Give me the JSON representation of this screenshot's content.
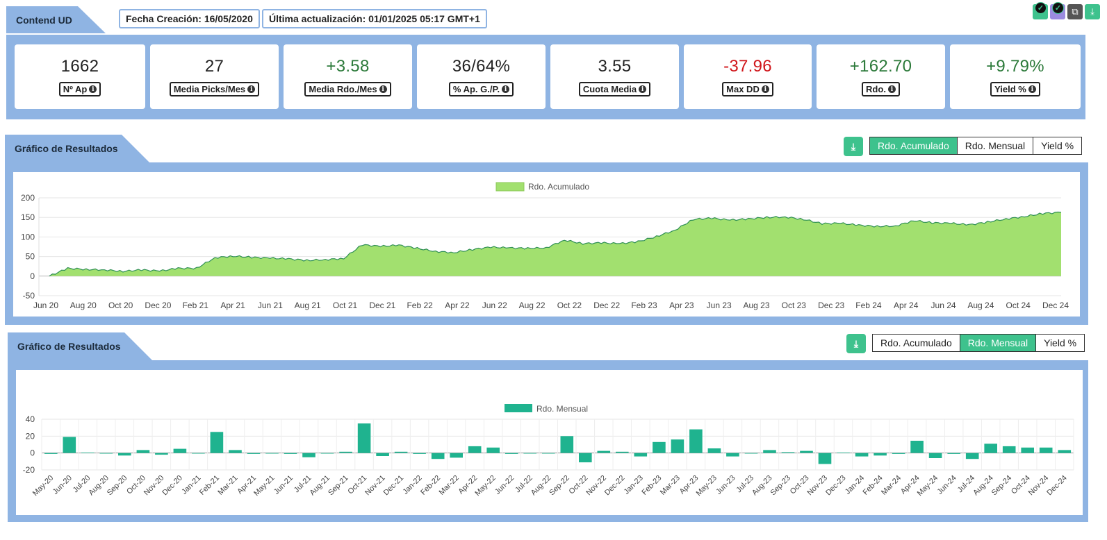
{
  "header": {
    "title": "Contend UD",
    "creation_label": "Fecha Creación: 16/05/2020",
    "update_label": "Última actualización: 01/01/2025 05:17 GMT+1"
  },
  "top_icons": [
    {
      "name": "check-badge-icon",
      "color": "#3ec28d"
    },
    {
      "name": "check-badge-icon",
      "color": "#9b8be0"
    },
    {
      "name": "copy-icon",
      "color": "#555555"
    },
    {
      "name": "download-icon",
      "color": "#3ec28d"
    }
  ],
  "stats": [
    {
      "value": "1662",
      "label": "Nº Ap",
      "tone": "neutral"
    },
    {
      "value": "27",
      "label": "Media Picks/Mes",
      "tone": "neutral"
    },
    {
      "value": "+3.58",
      "label": "Media Rdo./Mes",
      "tone": "pos"
    },
    {
      "value": "36/64%",
      "label": "% Ap. G./P.",
      "tone": "neutral"
    },
    {
      "value": "3.55",
      "label": "Cuota Media",
      "tone": "neutral"
    },
    {
      "value": "-37.96",
      "label": "Max DD",
      "tone": "neg"
    },
    {
      "value": "+162.70",
      "label": "Rdo.",
      "tone": "pos"
    },
    {
      "value": "+9.79%",
      "label": "Yield %",
      "tone": "pos"
    }
  ],
  "chart1": {
    "section_title": "Gráfico de Resultados",
    "tabs": [
      "Rdo. Acumulado",
      "Rdo. Mensual",
      "Yield %"
    ],
    "active_tab": 0
  },
  "chart2": {
    "section_title": "Gráfico de Resultados",
    "tabs": [
      "Rdo. Acumulado",
      "Rdo. Mensual",
      "Yield %"
    ],
    "active_tab": 1
  },
  "colors": {
    "panel": "#8fb4e3",
    "accent": "#3ec28d",
    "area": "#a2e06f",
    "area_line": "#2f8f55",
    "bar": "#1fb38f"
  },
  "chart_data": [
    {
      "type": "area",
      "legend": "Rdo. Acumulado",
      "ylim": [
        -50,
        200
      ],
      "yticks": [
        200,
        150,
        100,
        50,
        0,
        -50
      ],
      "xticks": [
        "Jun 20",
        "Aug 20",
        "Oct 20",
        "Dec 20",
        "Feb 21",
        "Apr 21",
        "Jun 21",
        "Aug 21",
        "Oct 21",
        "Dec 21",
        "Feb 22",
        "Apr 22",
        "Jun 22",
        "Aug 22",
        "Oct 22",
        "Dec 22",
        "Feb 23",
        "Apr 23",
        "Jun 23",
        "Aug 23",
        "Oct 23",
        "Dec 23",
        "Feb 24",
        "Apr 24",
        "Jun 24",
        "Aug 24",
        "Oct 24",
        "Dec 24"
      ],
      "x": [
        "May 20",
        "Jun 20",
        "Jul 20",
        "Aug 20",
        "Sep 20",
        "Oct 20",
        "Nov 20",
        "Dec 20",
        "Jan 21",
        "Feb 21",
        "Mar 21",
        "Apr 21",
        "May 21",
        "Jun 21",
        "Jul 21",
        "Aug 21",
        "Sep 21",
        "Oct 21",
        "Nov 21",
        "Dec 21",
        "Jan 22",
        "Feb 22",
        "Mar 22",
        "Apr 22",
        "May 22",
        "Jun 22",
        "Jul 22",
        "Aug 22",
        "Sep 22",
        "Oct 22",
        "Nov 22",
        "Dec 22",
        "Jan 23",
        "Feb 23",
        "Mar 23",
        "Apr 23",
        "May 23",
        "Jun 23",
        "Jul 23",
        "Aug 23",
        "Sep 23",
        "Oct 23",
        "Nov 23",
        "Dec 23",
        "Jan 24",
        "Feb 24",
        "Mar 24",
        "Apr 24",
        "May 24",
        "Jun 24",
        "Jul 24",
        "Aug 24",
        "Sep 24",
        "Oct 24",
        "Nov 24",
        "Dec 24"
      ],
      "values": [
        0,
        20,
        17,
        16,
        12,
        16,
        13,
        20,
        20,
        47,
        51,
        48,
        46,
        44,
        40,
        42,
        45,
        80,
        76,
        79,
        71,
        63,
        60,
        68,
        74,
        72,
        71,
        72,
        92,
        83,
        85,
        83,
        88,
        101,
        117,
        145,
        148,
        143,
        146,
        150,
        151,
        145,
        134,
        135,
        130,
        127,
        128,
        142,
        136,
        135,
        131,
        138,
        146,
        152,
        160,
        163
      ]
    },
    {
      "type": "bar",
      "legend": "Rdo. Mensual",
      "ylim": [
        -20,
        40
      ],
      "yticks": [
        40,
        20,
        0,
        -20
      ],
      "categories": [
        "May-20",
        "Jun-20",
        "Jul-20",
        "Aug-20",
        "Sep-20",
        "Oct-20",
        "Nov-20",
        "Dec-20",
        "Jan-21",
        "Feb-21",
        "Mar-21",
        "Apr-21",
        "May-21",
        "Jun-21",
        "Jul-21",
        "Aug-21",
        "Sep-21",
        "Oct-21",
        "Nov-21",
        "Dec-21",
        "Jan-22",
        "Feb-22",
        "Mar-22",
        "Apr-22",
        "May-22",
        "Jun-22",
        "Jul-22",
        "Aug-22",
        "Sep-22",
        "Oct-22",
        "Nov-22",
        "Dec-22",
        "Jan-23",
        "Feb-23",
        "Mar-23",
        "Apr-23",
        "May-23",
        "Jun-23",
        "Jul-23",
        "Aug-23",
        "Sep-23",
        "Oct-23",
        "Nov-23",
        "Dec-23",
        "Jan-24",
        "Feb-24",
        "Mar-24",
        "Apr-24",
        "May-24",
        "Jun-24",
        "Jul-24",
        "Aug-24",
        "Sep-24",
        "Oct-24",
        "Nov-24",
        "Dec-24"
      ],
      "values": [
        -1,
        19,
        0.5,
        0,
        -3,
        3.5,
        -2,
        5,
        0,
        25,
        3.5,
        -1,
        0,
        -1,
        -5,
        0,
        1.5,
        35,
        -3.5,
        1.5,
        -1,
        -7,
        -5.5,
        8,
        6.5,
        -1,
        0,
        0,
        20,
        -11,
        2.5,
        1.5,
        -4,
        13,
        16,
        28,
        5.5,
        -4,
        0,
        3.5,
        1,
        2.5,
        -13,
        0.5,
        -4,
        -3,
        -1,
        14.5,
        -6,
        -1,
        -7,
        11,
        8,
        6.5,
        6.5,
        3.5
      ]
    }
  ]
}
